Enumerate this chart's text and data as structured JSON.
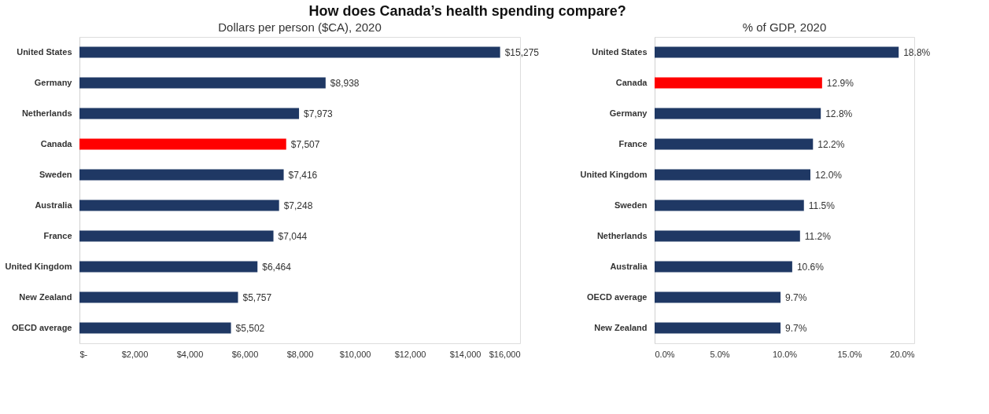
{
  "chart_data": [
    {
      "type": "bar",
      "orientation": "horizontal",
      "title": "How does Canada’s health spending compare?",
      "subtitle": "Dollars per person ($CA), 2020",
      "categories": [
        "United States",
        "Germany",
        "Netherlands",
        "Canada",
        "Sweden",
        "Australia",
        "France",
        "United Kingdom",
        "New Zealand",
        "OECD average"
      ],
      "values": [
        15275,
        8938,
        7973,
        7507,
        7416,
        7248,
        7044,
        6464,
        5757,
        5502
      ],
      "value_labels": [
        "$15,275",
        "$8,938",
        "$7,973",
        "$7,507",
        "$7,416",
        "$7,248",
        "$7,044",
        "$6,464",
        "$5,757",
        "$5,502"
      ],
      "colors": [
        "#1f3864",
        "#1f3864",
        "#1f3864",
        "#ff0000",
        "#1f3864",
        "#1f3864",
        "#1f3864",
        "#1f3864",
        "#1f3864",
        "#1f3864"
      ],
      "xlim": [
        0,
        16000
      ],
      "xticks": [
        {
          "value": 0,
          "label": "$-"
        },
        {
          "value": 2000,
          "label": "$2,000"
        },
        {
          "value": 4000,
          "label": "$4,000"
        },
        {
          "value": 6000,
          "label": "$6,000"
        },
        {
          "value": 8000,
          "label": "$8,000"
        },
        {
          "value": 10000,
          "label": "$10,000"
        },
        {
          "value": 12000,
          "label": "$12,000"
        },
        {
          "value": 14000,
          "label": "$14,000"
        },
        {
          "value": 16000,
          "label": "$16,000"
        }
      ],
      "grid": false
    },
    {
      "type": "bar",
      "orientation": "horizontal",
      "title": "% of GDP, 2020",
      "categories": [
        "United States",
        "Canada",
        "Germany",
        "France",
        "United Kingdom",
        "Sweden",
        "Netherlands",
        "Australia",
        "OECD average",
        "New Zealand"
      ],
      "values": [
        18.8,
        12.9,
        12.8,
        12.2,
        12.0,
        11.5,
        11.2,
        10.6,
        9.7,
        9.7
      ],
      "value_labels": [
        "18.8%",
        "12.9%",
        "12.8%",
        "12.2%",
        "12.0%",
        "11.5%",
        "11.2%",
        "10.6%",
        "9.7%",
        "9.7%"
      ],
      "colors": [
        "#1f3864",
        "#ff0000",
        "#1f3864",
        "#1f3864",
        "#1f3864",
        "#1f3864",
        "#1f3864",
        "#1f3864",
        "#1f3864",
        "#1f3864"
      ],
      "xlim": [
        0,
        20
      ],
      "xticks": [
        {
          "value": 0,
          "label": "0.0%"
        },
        {
          "value": 5,
          "label": "5.0%"
        },
        {
          "value": 10,
          "label": "10.0%"
        },
        {
          "value": 15,
          "label": "15.0%"
        },
        {
          "value": 20,
          "label": "20.0%"
        }
      ],
      "grid": false
    }
  ]
}
